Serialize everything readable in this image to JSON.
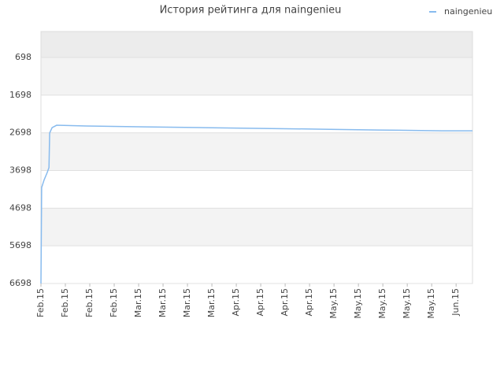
{
  "chart_data": {
    "type": "line",
    "title": "История рейтинга для naingenieu",
    "x": [
      0,
      0.2,
      0.9,
      1.8,
      2.3,
      2.5,
      3.2,
      4.5,
      13,
      30,
      47,
      64,
      81,
      97,
      115,
      123.7
    ],
    "series": [
      {
        "name": "naingenieu",
        "color": "#88bbee",
        "values": [
          6698,
          4150,
          3950,
          3750,
          3620,
          2700,
          2560,
          2497,
          2518,
          2539,
          2560,
          2581,
          2602,
          2623,
          2644,
          2644
        ]
      }
    ],
    "xlim": [
      0,
      123.7
    ],
    "xticks": [
      {
        "value": 0,
        "label": "Feb.15"
      },
      {
        "value": 7,
        "label": "Feb.15"
      },
      {
        "value": 14,
        "label": "Feb.15"
      },
      {
        "value": 21,
        "label": "Feb.15"
      },
      {
        "value": 28,
        "label": "Mar.15"
      },
      {
        "value": 35,
        "label": "Mar.15"
      },
      {
        "value": 42,
        "label": "Mar.15"
      },
      {
        "value": 49,
        "label": "Mar.15"
      },
      {
        "value": 56,
        "label": "Apr.15"
      },
      {
        "value": 63,
        "label": "Apr.15"
      },
      {
        "value": 70,
        "label": "Apr.15"
      },
      {
        "value": 77,
        "label": "Apr.15"
      },
      {
        "value": 84,
        "label": "May.15"
      },
      {
        "value": 91,
        "label": "May.15"
      },
      {
        "value": 98,
        "label": "May.15"
      },
      {
        "value": 105,
        "label": "May.15"
      },
      {
        "value": 112,
        "label": "May.15"
      },
      {
        "value": 119,
        "label": "Jun.15"
      }
    ],
    "ylim": [
      8,
      6698
    ],
    "y_inverted": true,
    "yticks": [
      698,
      1698,
      2698,
      3698,
      4698,
      5698,
      6698
    ],
    "grid": true,
    "legend": "top-right"
  }
}
